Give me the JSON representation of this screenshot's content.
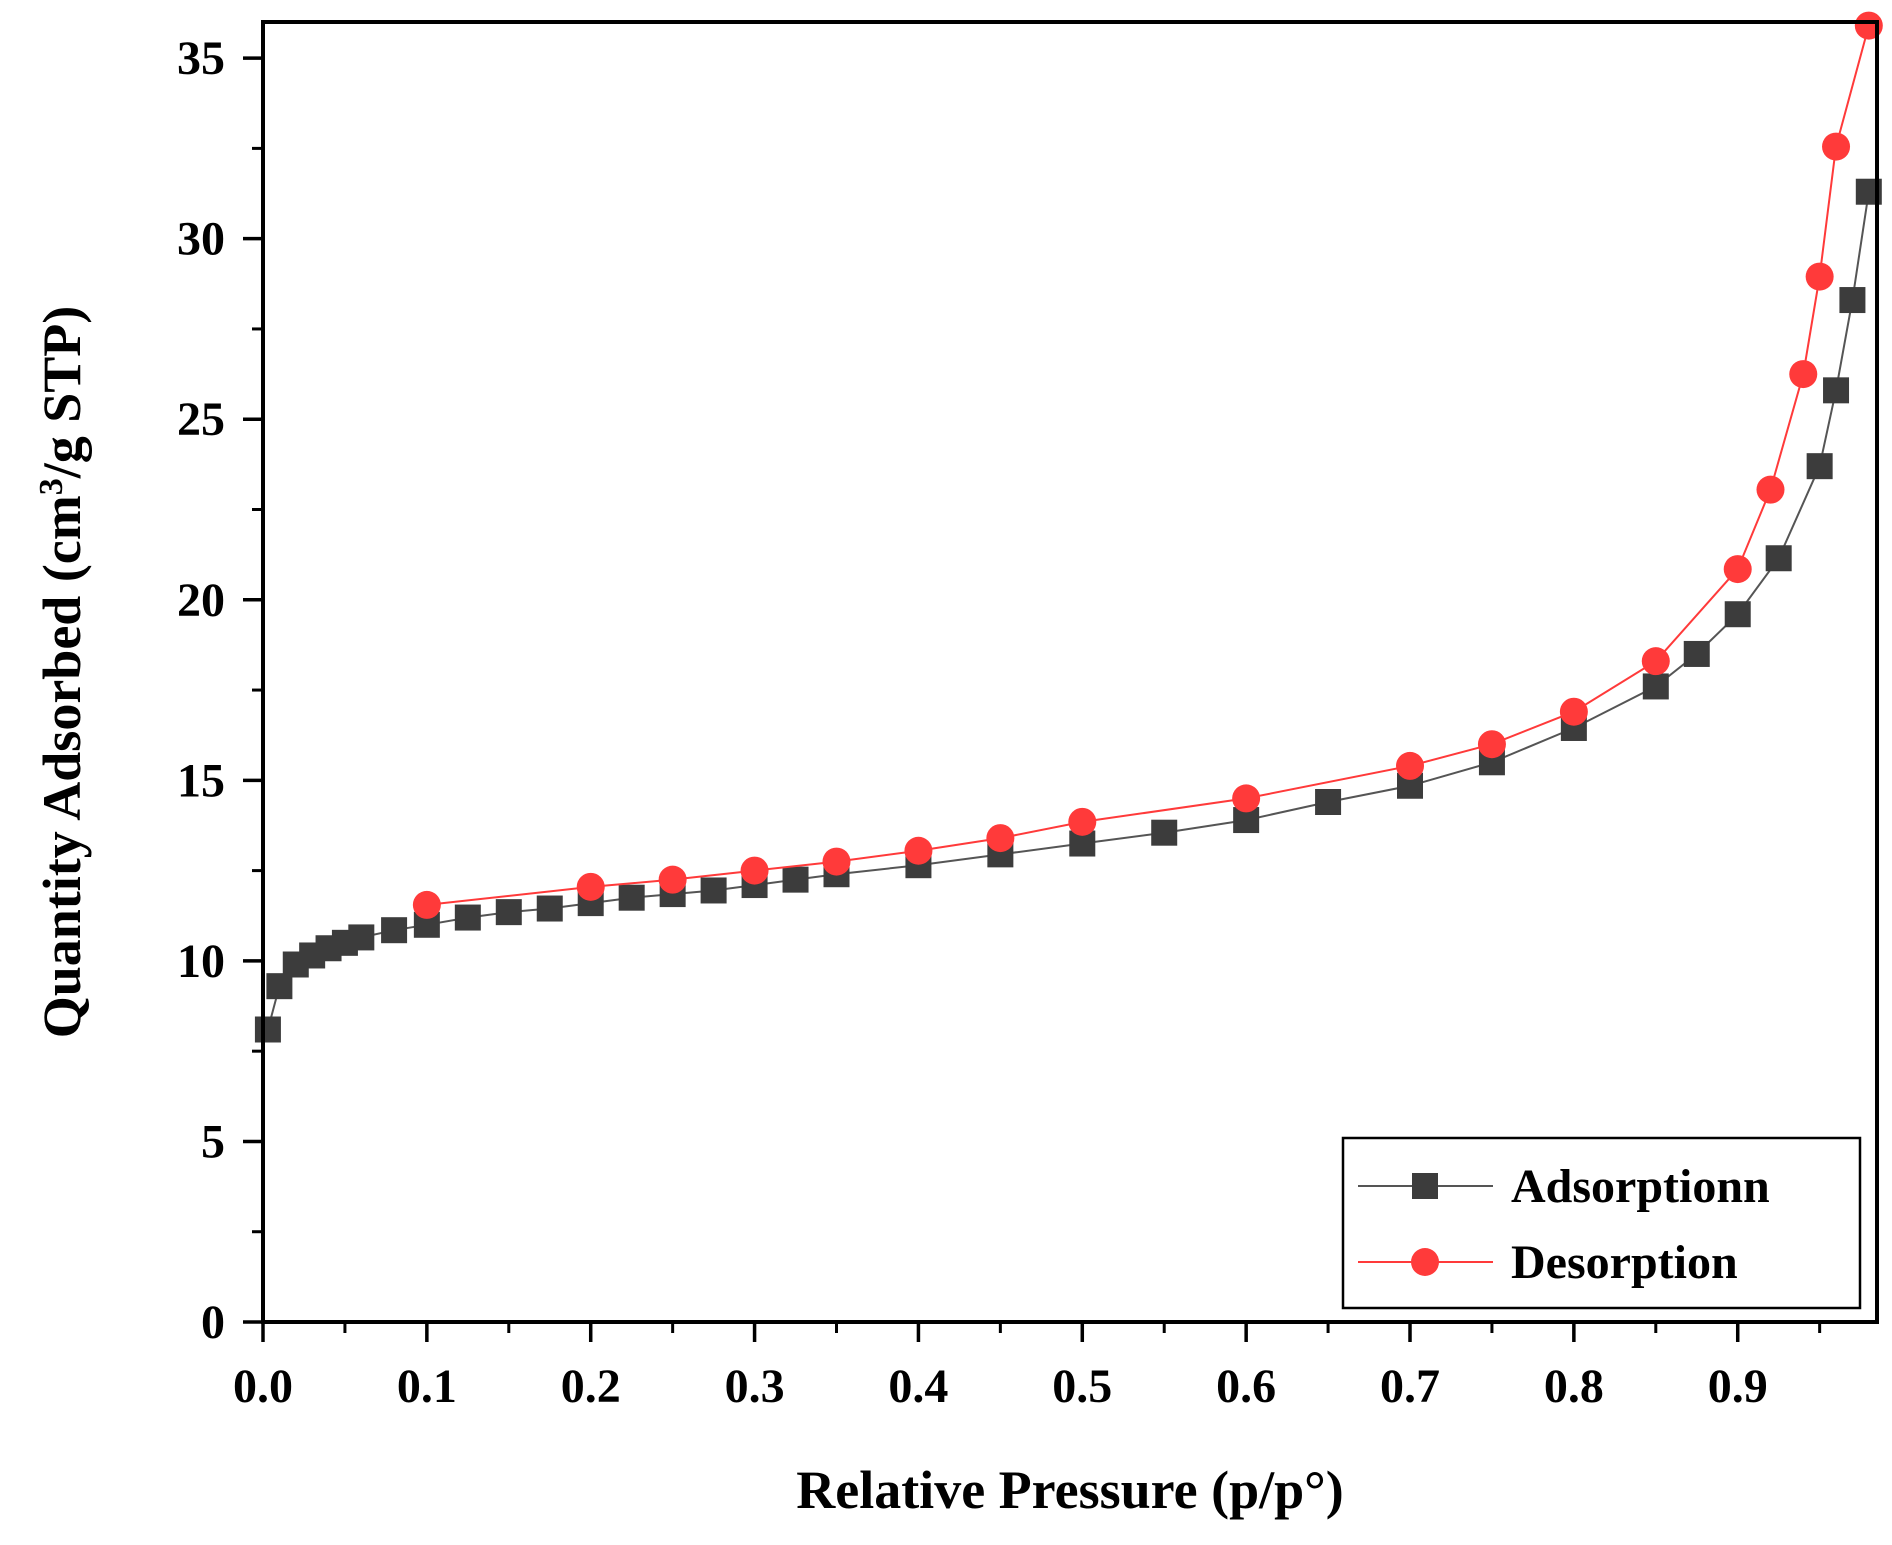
{
  "chart_data": {
    "type": "scatter",
    "title": "",
    "xlabel": "Relative Pressure (p/p°)",
    "ylabel_prefix": "Quantity Adsorbed (cm",
    "ylabel_sup": "3",
    "ylabel_suffix": "/g STP)",
    "xlim": [
      0,
      0.985
    ],
    "ylim": [
      0,
      36
    ],
    "xticks": [
      0.0,
      0.1,
      0.2,
      0.3,
      0.4,
      0.5,
      0.6,
      0.7,
      0.8,
      0.9
    ],
    "xtick_labels": [
      "0.0",
      "0.1",
      "0.2",
      "0.3",
      "0.4",
      "0.5",
      "0.6",
      "0.7",
      "0.8",
      "0.9"
    ],
    "yticks": [
      0,
      5,
      10,
      15,
      20,
      25,
      30,
      35
    ],
    "ytick_labels": [
      "0",
      "5",
      "10",
      "15",
      "20",
      "25",
      "30",
      "35"
    ],
    "legend_position": "bottom-right",
    "series": [
      {
        "name": "Adsorptionn",
        "marker": "square",
        "color": "#3c3c3c",
        "line_color": "#555555",
        "x": [
          0.003,
          0.01,
          0.02,
          0.03,
          0.04,
          0.05,
          0.06,
          0.08,
          0.1,
          0.125,
          0.15,
          0.175,
          0.2,
          0.225,
          0.25,
          0.275,
          0.3,
          0.325,
          0.35,
          0.4,
          0.45,
          0.5,
          0.55,
          0.6,
          0.65,
          0.7,
          0.75,
          0.8,
          0.85,
          0.875,
          0.9,
          0.925,
          0.95,
          0.96,
          0.97,
          0.98
        ],
        "y": [
          8.1,
          9.3,
          9.9,
          10.15,
          10.35,
          10.5,
          10.65,
          10.85,
          11.0,
          11.2,
          11.35,
          11.45,
          11.6,
          11.75,
          11.85,
          11.95,
          12.1,
          12.25,
          12.4,
          12.65,
          12.95,
          13.25,
          13.55,
          13.9,
          14.4,
          14.85,
          15.5,
          16.45,
          17.6,
          18.5,
          19.6,
          21.15,
          23.7,
          25.8,
          28.3,
          31.3
        ]
      },
      {
        "name": "Desorption",
        "marker": "circle",
        "color": "#ff3a3a",
        "line_color": "#ff3a3a",
        "x": [
          0.1,
          0.2,
          0.25,
          0.3,
          0.35,
          0.4,
          0.45,
          0.5,
          0.6,
          0.7,
          0.75,
          0.8,
          0.85,
          0.9,
          0.92,
          0.94,
          0.95,
          0.96,
          0.98
        ],
        "y": [
          11.55,
          12.05,
          12.25,
          12.5,
          12.75,
          13.05,
          13.4,
          13.85,
          14.5,
          15.4,
          16.0,
          16.9,
          18.3,
          20.85,
          23.05,
          26.25,
          28.95,
          32.55,
          35.9
        ]
      }
    ]
  }
}
